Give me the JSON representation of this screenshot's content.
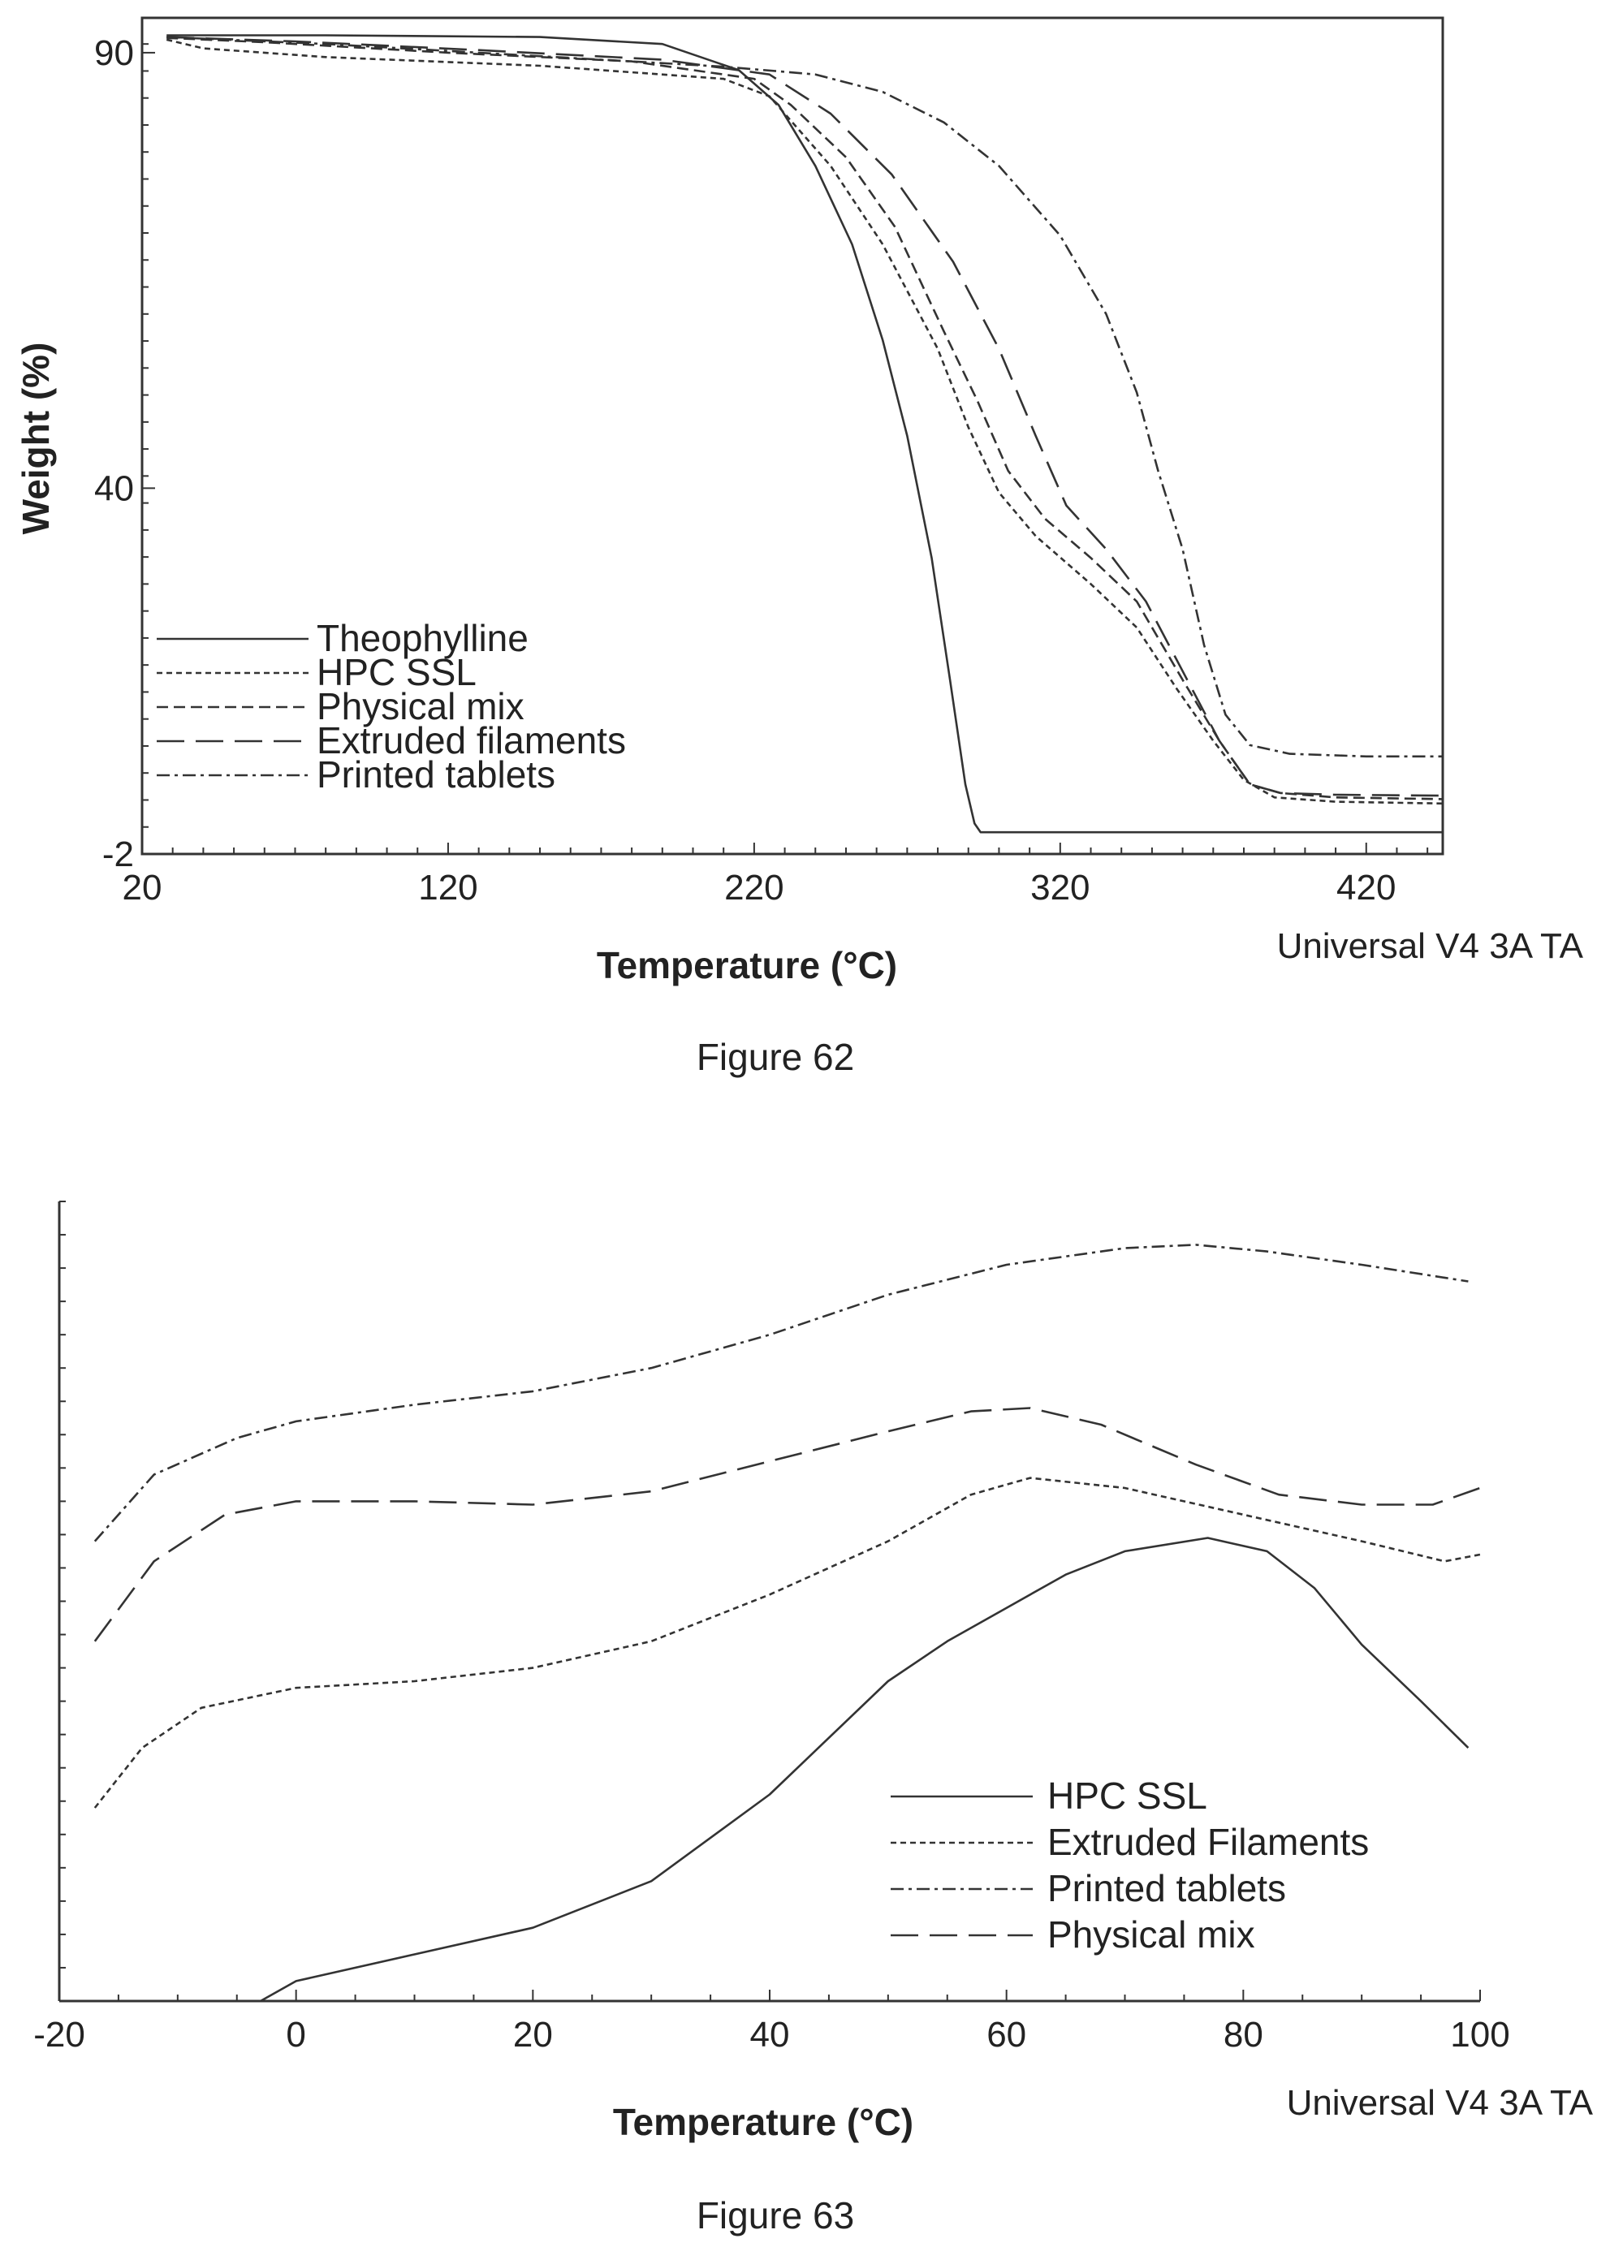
{
  "figure62": {
    "caption": "Figure 62",
    "credit": "Universal V4 3A TA"
  },
  "figure63": {
    "caption": "Figure 63",
    "credit": "Universal V4 3A TA"
  },
  "chart_data": [
    {
      "id": "fig62",
      "type": "line",
      "title": "",
      "xlabel": "Temperature (°C)",
      "ylabel": "Weight (%)",
      "xlim": [
        20,
        445
      ],
      "ylim": [
        -2,
        94
      ],
      "x_ticks": [
        20,
        120,
        220,
        320,
        420
      ],
      "y_ticks": [
        -2,
        40,
        90
      ],
      "legend_position": "bottom-left",
      "series": [
        {
          "name": "Theophylline",
          "dash": "solid",
          "points": [
            [
              28,
              92
            ],
            [
              80,
              92
            ],
            [
              150,
              91.8
            ],
            [
              190,
              91
            ],
            [
              215,
              88
            ],
            [
              228,
              84
            ],
            [
              240,
              77
            ],
            [
              252,
              68
            ],
            [
              262,
              57
            ],
            [
              270,
              46
            ],
            [
              278,
              32
            ],
            [
              284,
              18
            ],
            [
              289,
              6
            ],
            [
              292,
              1.5
            ],
            [
              294,
              0.5
            ],
            [
              445,
              0.5
            ]
          ]
        },
        {
          "name": "HPC SSL",
          "dash": "fine",
          "points": [
            [
              28,
              91.5
            ],
            [
              40,
              90.5
            ],
            [
              80,
              89.5
            ],
            [
              150,
              88.5
            ],
            [
              210,
              87
            ],
            [
              225,
              85
            ],
            [
              245,
              77
            ],
            [
              262,
              68
            ],
            [
              280,
              56
            ],
            [
              290,
              47
            ],
            [
              300,
              39.5
            ],
            [
              312,
              34.5
            ],
            [
              330,
              29
            ],
            [
              345,
              24
            ],
            [
              358,
              17
            ],
            [
              370,
              11
            ],
            [
              380,
              6.5
            ],
            [
              390,
              4.5
            ],
            [
              410,
              4
            ],
            [
              445,
              3.8
            ]
          ]
        },
        {
          "name": "Physical mix",
          "dash": "medium",
          "points": [
            [
              28,
              91.7
            ],
            [
              60,
              91.2
            ],
            [
              120,
              90
            ],
            [
              180,
              89
            ],
            [
              220,
              87
            ],
            [
              232,
              84
            ],
            [
              250,
              78
            ],
            [
              266,
              70
            ],
            [
              282,
              58
            ],
            [
              293,
              50
            ],
            [
              303,
              42
            ],
            [
              315,
              36.5
            ],
            [
              330,
              32
            ],
            [
              345,
              27
            ],
            [
              360,
              18
            ],
            [
              372,
              11
            ],
            [
              382,
              6
            ],
            [
              392,
              5
            ],
            [
              410,
              4.5
            ],
            [
              445,
              4.3
            ]
          ]
        },
        {
          "name": "Extruded filaments",
          "dash": "long",
          "points": [
            [
              28,
              91.8
            ],
            [
              70,
              91.3
            ],
            [
              130,
              90.3
            ],
            [
              190,
              89.2
            ],
            [
              225,
              87.5
            ],
            [
              245,
              83
            ],
            [
              265,
              76
            ],
            [
              285,
              66
            ],
            [
              300,
              56
            ],
            [
              312,
              46
            ],
            [
              322,
              38
            ],
            [
              335,
              33
            ],
            [
              348,
              27
            ],
            [
              360,
              19
            ],
            [
              372,
              11
            ],
            [
              382,
              6
            ],
            [
              392,
              5
            ],
            [
              410,
              4.8
            ],
            [
              445,
              4.7
            ]
          ]
        },
        {
          "name": "Printed tablets",
          "dash": "dashdot",
          "points": [
            [
              28,
              91.8
            ],
            [
              80,
              91
            ],
            [
              150,
              89.6
            ],
            [
              210,
              88.4
            ],
            [
              240,
              87.5
            ],
            [
              262,
              85.5
            ],
            [
              282,
              82
            ],
            [
              300,
              77
            ],
            [
              320,
              69
            ],
            [
              335,
              60
            ],
            [
              345,
              51
            ],
            [
              352,
              42
            ],
            [
              360,
              33
            ],
            [
              367,
              22
            ],
            [
              374,
              14
            ],
            [
              382,
              10.5
            ],
            [
              395,
              9.5
            ],
            [
              420,
              9.2
            ],
            [
              445,
              9.2
            ]
          ]
        }
      ]
    },
    {
      "id": "fig63",
      "type": "line",
      "title": "",
      "xlabel": "Temperature (°C)",
      "ylabel": "",
      "xlim": [
        -20,
        100
      ],
      "ylim": [
        0,
        24
      ],
      "x_ticks": [
        -20,
        0,
        20,
        40,
        60,
        80,
        100
      ],
      "legend_position": "bottom-right",
      "series": [
        {
          "name": "HPC SSL",
          "dash": "solid",
          "points": [
            [
              -3,
              0
            ],
            [
              0,
              0.6
            ],
            [
              10,
              1.4
            ],
            [
              20,
              2.2
            ],
            [
              30,
              3.6
            ],
            [
              40,
              6.2
            ],
            [
              50,
              9.6
            ],
            [
              55,
              10.8
            ],
            [
              60,
              11.8
            ],
            [
              65,
              12.8
            ],
            [
              70,
              13.5
            ],
            [
              77,
              13.9
            ],
            [
              82,
              13.5
            ],
            [
              86,
              12.4
            ],
            [
              90,
              10.7
            ],
            [
              95,
              9.0
            ],
            [
              99,
              7.6
            ]
          ]
        },
        {
          "name": "Extruded Filaments",
          "dash": "fine",
          "points": [
            [
              -17,
              5.8
            ],
            [
              -13,
              7.6
            ],
            [
              -8,
              8.8
            ],
            [
              0,
              9.4
            ],
            [
              10,
              9.6
            ],
            [
              20,
              10.0
            ],
            [
              30,
              10.8
            ],
            [
              40,
              12.2
            ],
            [
              50,
              13.8
            ],
            [
              57,
              15.2
            ],
            [
              62,
              15.7
            ],
            [
              70,
              15.4
            ],
            [
              80,
              14.6
            ],
            [
              90,
              13.8
            ],
            [
              97,
              13.2
            ],
            [
              100,
              13.4
            ]
          ]
        },
        {
          "name": "Printed tablets",
          "dash": "dashdot",
          "points": [
            [
              -17,
              13.8
            ],
            [
              -12,
              15.8
            ],
            [
              -5,
              16.9
            ],
            [
              0,
              17.4
            ],
            [
              10,
              17.9
            ],
            [
              20,
              18.3
            ],
            [
              30,
              19.0
            ],
            [
              40,
              20.0
            ],
            [
              50,
              21.2
            ],
            [
              60,
              22.1
            ],
            [
              70,
              22.6
            ],
            [
              76,
              22.7
            ],
            [
              82,
              22.5
            ],
            [
              90,
              22.1
            ],
            [
              99,
              21.6
            ]
          ]
        },
        {
          "name": "Physical mix",
          "dash": "long",
          "points": [
            [
              -17,
              10.8
            ],
            [
              -12,
              13.2
            ],
            [
              -6,
              14.6
            ],
            [
              0,
              15.0
            ],
            [
              10,
              15.0
            ],
            [
              20,
              14.9
            ],
            [
              30,
              15.3
            ],
            [
              40,
              16.2
            ],
            [
              50,
              17.1
            ],
            [
              57,
              17.7
            ],
            [
              62,
              17.8
            ],
            [
              68,
              17.3
            ],
            [
              76,
              16.1
            ],
            [
              83,
              15.2
            ],
            [
              90,
              14.9
            ],
            [
              96,
              14.9
            ],
            [
              100,
              15.4
            ]
          ]
        }
      ]
    }
  ]
}
